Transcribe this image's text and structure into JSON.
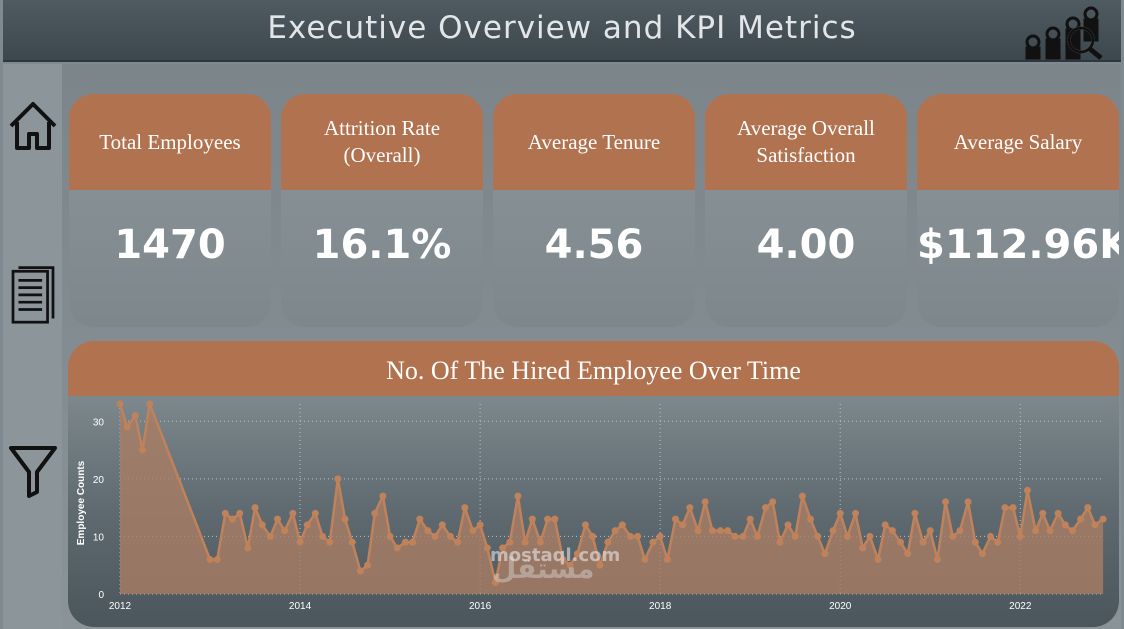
{
  "header": {
    "title": "Executive Overview and KPI Metrics"
  },
  "sidebar": {
    "items": [
      {
        "icon": "home-icon"
      },
      {
        "icon": "document-icon"
      },
      {
        "icon": "filter-icon"
      }
    ]
  },
  "kpis": [
    {
      "label": "Total Employees",
      "value": "1470"
    },
    {
      "label": "Attrition Rate (Overall)",
      "value": "16.1%"
    },
    {
      "label": "Average Tenure",
      "value": "4.56"
    },
    {
      "label": "Average Overall Satisfaction",
      "value": "4.00"
    },
    {
      "label": "Average Salary",
      "value": "$112.96K"
    }
  ],
  "chart_data": {
    "type": "area",
    "title": "No. Of The Hired Employee Over Time",
    "ylabel": "Employee Counts",
    "xlabel": "",
    "ylim": [
      0,
      33
    ],
    "xlim": [
      2012,
      2022.93
    ],
    "y_ticks": [
      0,
      10,
      20,
      30
    ],
    "x_ticks": [
      "2012",
      "2014",
      "2016",
      "2018",
      "2020",
      "2022"
    ],
    "grid": "dotted",
    "line_color": "#c0825a",
    "fill_color": "#a97d64",
    "series": [
      {
        "points": [
          [
            2012.0,
            33
          ],
          [
            2012.08,
            29
          ],
          [
            2012.17,
            31
          ],
          [
            2012.25,
            25
          ],
          [
            2012.33,
            33
          ],
          [
            2013.0,
            6
          ],
          [
            2013.08,
            6
          ],
          [
            2013.17,
            14
          ],
          [
            2013.25,
            13
          ],
          [
            2013.33,
            14
          ],
          [
            2013.42,
            8
          ],
          [
            2013.5,
            15
          ],
          [
            2013.58,
            12
          ],
          [
            2013.67,
            10
          ],
          [
            2013.75,
            13
          ],
          [
            2013.83,
            11
          ],
          [
            2013.92,
            14
          ],
          [
            2014.0,
            9
          ],
          [
            2014.08,
            12
          ],
          [
            2014.17,
            14
          ],
          [
            2014.25,
            10
          ],
          [
            2014.33,
            9
          ],
          [
            2014.42,
            20
          ],
          [
            2014.5,
            13
          ],
          [
            2014.58,
            9
          ],
          [
            2014.67,
            4
          ],
          [
            2014.75,
            5
          ],
          [
            2014.83,
            14
          ],
          [
            2014.92,
            17
          ],
          [
            2015.0,
            10
          ],
          [
            2015.08,
            8
          ],
          [
            2015.17,
            9
          ],
          [
            2015.25,
            9
          ],
          [
            2015.33,
            13
          ],
          [
            2015.42,
            11
          ],
          [
            2015.5,
            10
          ],
          [
            2015.58,
            12
          ],
          [
            2015.67,
            10
          ],
          [
            2015.75,
            9
          ],
          [
            2015.83,
            15
          ],
          [
            2015.92,
            11
          ],
          [
            2016.0,
            12
          ],
          [
            2016.08,
            8
          ],
          [
            2016.17,
            2
          ],
          [
            2016.25,
            8
          ],
          [
            2016.33,
            9
          ],
          [
            2016.42,
            17
          ],
          [
            2016.5,
            9
          ],
          [
            2016.58,
            13
          ],
          [
            2016.67,
            9
          ],
          [
            2016.75,
            13
          ],
          [
            2016.83,
            13
          ],
          [
            2016.92,
            6
          ],
          [
            2017.0,
            5
          ],
          [
            2017.08,
            7
          ],
          [
            2017.17,
            12
          ],
          [
            2017.25,
            10
          ],
          [
            2017.33,
            5
          ],
          [
            2017.42,
            9
          ],
          [
            2017.5,
            11
          ],
          [
            2017.58,
            12
          ],
          [
            2017.67,
            10
          ],
          [
            2017.75,
            10
          ],
          [
            2017.83,
            6
          ],
          [
            2017.92,
            9
          ],
          [
            2018.0,
            10
          ],
          [
            2018.08,
            6
          ],
          [
            2018.17,
            13
          ],
          [
            2018.25,
            12
          ],
          [
            2018.33,
            15
          ],
          [
            2018.42,
            11
          ],
          [
            2018.5,
            16
          ],
          [
            2018.58,
            11
          ],
          [
            2018.67,
            11
          ],
          [
            2018.75,
            11
          ],
          [
            2018.83,
            10
          ],
          [
            2018.92,
            10
          ],
          [
            2019.0,
            13
          ],
          [
            2019.08,
            10
          ],
          [
            2019.17,
            15
          ],
          [
            2019.25,
            16
          ],
          [
            2019.33,
            9
          ],
          [
            2019.42,
            12
          ],
          [
            2019.5,
            10
          ],
          [
            2019.58,
            17
          ],
          [
            2019.67,
            13
          ],
          [
            2019.75,
            10
          ],
          [
            2019.83,
            7
          ],
          [
            2019.92,
            11
          ],
          [
            2020.0,
            14
          ],
          [
            2020.08,
            10
          ],
          [
            2020.17,
            14
          ],
          [
            2020.25,
            8
          ],
          [
            2020.33,
            10
          ],
          [
            2020.42,
            6
          ],
          [
            2020.5,
            12
          ],
          [
            2020.58,
            11
          ],
          [
            2020.67,
            9
          ],
          [
            2020.75,
            7
          ],
          [
            2020.83,
            14
          ],
          [
            2020.92,
            9
          ],
          [
            2021.0,
            11
          ],
          [
            2021.08,
            6
          ],
          [
            2021.17,
            16
          ],
          [
            2021.25,
            10
          ],
          [
            2021.33,
            11
          ],
          [
            2021.42,
            16
          ],
          [
            2021.5,
            9
          ],
          [
            2021.58,
            7
          ],
          [
            2021.67,
            10
          ],
          [
            2021.75,
            9
          ],
          [
            2021.83,
            15
          ],
          [
            2021.92,
            15
          ],
          [
            2022.0,
            10
          ],
          [
            2022.08,
            18
          ],
          [
            2022.17,
            11
          ],
          [
            2022.25,
            14
          ],
          [
            2022.33,
            11
          ],
          [
            2022.42,
            14
          ],
          [
            2022.5,
            12
          ],
          [
            2022.58,
            11
          ],
          [
            2022.67,
            13
          ],
          [
            2022.75,
            15
          ],
          [
            2022.83,
            12
          ],
          [
            2022.92,
            13
          ]
        ]
      }
    ]
  },
  "watermark": {
    "latin": "mostaql.com",
    "arabic": "مستقل"
  }
}
